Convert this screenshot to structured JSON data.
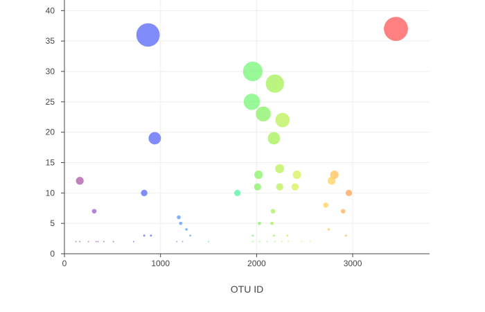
{
  "chart_data": {
    "type": "scatter",
    "title": "",
    "xlabel": "OTU ID",
    "ylabel": "",
    "xlim": [
      0,
      3800
    ],
    "ylim": [
      0,
      41
    ],
    "x_ticks": [
      0,
      1000,
      2000,
      3000
    ],
    "y_ticks": [
      0,
      5,
      10,
      15,
      20,
      25,
      30,
      35,
      40
    ],
    "x_tick_labels": [
      "0",
      "1000",
      "2000",
      "3000"
    ],
    "y_tick_labels": [
      "0",
      "5",
      "10",
      "15",
      "20",
      "25",
      "30",
      "35",
      "40"
    ],
    "grid": true,
    "legend": false,
    "marker_size_encodes": "y value",
    "marker_color_encodes": "OTU ID",
    "points": [
      {
        "x": 3450,
        "y": 37,
        "color": "#ff5c5c"
      },
      {
        "x": 870,
        "y": 36,
        "color": "#5c6cf7"
      },
      {
        "x": 940,
        "y": 19,
        "color": "#5c6cf7"
      },
      {
        "x": 1960,
        "y": 30,
        "color": "#7cf77c"
      },
      {
        "x": 2190,
        "y": 28,
        "color": "#a8f25c"
      },
      {
        "x": 1950,
        "y": 25,
        "color": "#7cf77c"
      },
      {
        "x": 2070,
        "y": 23,
        "color": "#8cf26c"
      },
      {
        "x": 2270,
        "y": 22,
        "color": "#bcf25c"
      },
      {
        "x": 2180,
        "y": 19,
        "color": "#a8f25c"
      },
      {
        "x": 2240,
        "y": 14,
        "color": "#bcf25c"
      },
      {
        "x": 2020,
        "y": 13,
        "color": "#8cf26c"
      },
      {
        "x": 2420,
        "y": 13,
        "color": "#d8f25c"
      },
      {
        "x": 2810,
        "y": 13,
        "color": "#ffc35c"
      },
      {
        "x": 160,
        "y": 12,
        "color": "#b05ca8"
      },
      {
        "x": 2780,
        "y": 12,
        "color": "#ffd35c"
      },
      {
        "x": 2010,
        "y": 11,
        "color": "#8cf26c"
      },
      {
        "x": 2240,
        "y": 11,
        "color": "#bcf25c"
      },
      {
        "x": 2400,
        "y": 11,
        "color": "#d8f25c"
      },
      {
        "x": 830,
        "y": 10,
        "color": "#5c6cf7"
      },
      {
        "x": 1800,
        "y": 10,
        "color": "#5cf2a8"
      },
      {
        "x": 2960,
        "y": 10,
        "color": "#ffa85c"
      },
      {
        "x": 2720,
        "y": 8,
        "color": "#ffd35c"
      },
      {
        "x": 310,
        "y": 7,
        "color": "#9c5cc8"
      },
      {
        "x": 2170,
        "y": 7,
        "color": "#a8f25c"
      },
      {
        "x": 2900,
        "y": 7,
        "color": "#ffb35c"
      },
      {
        "x": 1190,
        "y": 6,
        "color": "#5c9cf7"
      },
      {
        "x": 1210,
        "y": 5,
        "color": "#5c9cf7"
      },
      {
        "x": 2030,
        "y": 5,
        "color": "#8cf26c"
      },
      {
        "x": 2160,
        "y": 5,
        "color": "#a8f25c"
      },
      {
        "x": 1270,
        "y": 4,
        "color": "#5cacf7"
      },
      {
        "x": 2750,
        "y": 4,
        "color": "#ffd35c"
      },
      {
        "x": 830,
        "y": 3,
        "color": "#5c6cf7"
      },
      {
        "x": 900,
        "y": 3,
        "color": "#5c6cf7"
      },
      {
        "x": 1310,
        "y": 3,
        "color": "#5cb8f7"
      },
      {
        "x": 1960,
        "y": 3,
        "color": "#7cf77c"
      },
      {
        "x": 2180,
        "y": 3,
        "color": "#a8f25c"
      },
      {
        "x": 2320,
        "y": 3,
        "color": "#c8f25c"
      },
      {
        "x": 2930,
        "y": 3,
        "color": "#ffb35c"
      },
      {
        "x": 120,
        "y": 2,
        "color": "#b05ca8"
      },
      {
        "x": 160,
        "y": 2,
        "color": "#b05ca8"
      },
      {
        "x": 250,
        "y": 2,
        "color": "#a85cb8"
      },
      {
        "x": 330,
        "y": 2,
        "color": "#9c5cc8"
      },
      {
        "x": 350,
        "y": 2,
        "color": "#9c5cc8"
      },
      {
        "x": 410,
        "y": 2,
        "color": "#905cd0"
      },
      {
        "x": 510,
        "y": 2,
        "color": "#805cd8"
      },
      {
        "x": 720,
        "y": 2,
        "color": "#6c5ce8"
      },
      {
        "x": 1170,
        "y": 2,
        "color": "#5c9cf7"
      },
      {
        "x": 1230,
        "y": 2,
        "color": "#5c9cf7"
      },
      {
        "x": 1500,
        "y": 2,
        "color": "#5cd8e8"
      },
      {
        "x": 1960,
        "y": 2,
        "color": "#7cf77c"
      },
      {
        "x": 2030,
        "y": 2,
        "color": "#8cf26c"
      },
      {
        "x": 2110,
        "y": 2,
        "color": "#98f26c"
      },
      {
        "x": 2190,
        "y": 2,
        "color": "#a8f25c"
      },
      {
        "x": 2260,
        "y": 2,
        "color": "#bcf25c"
      },
      {
        "x": 2330,
        "y": 2,
        "color": "#c8f25c"
      },
      {
        "x": 2470,
        "y": 2,
        "color": "#e0f25c"
      },
      {
        "x": 2560,
        "y": 2,
        "color": "#f0e85c"
      }
    ]
  }
}
